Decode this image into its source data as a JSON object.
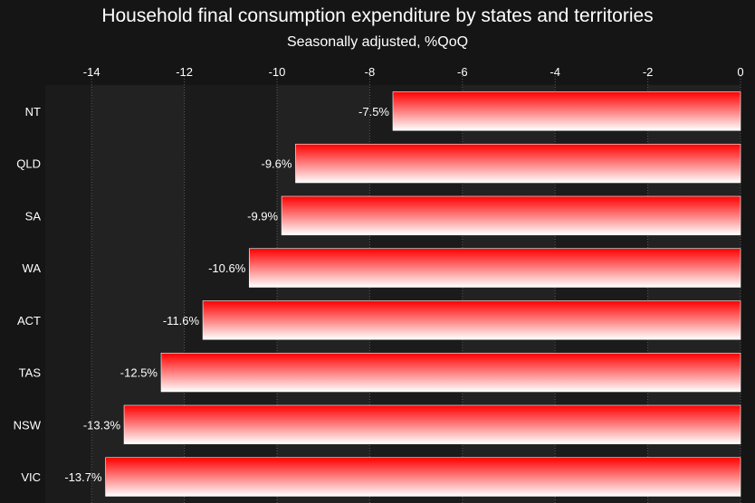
{
  "colors": {
    "background": "#151515",
    "plot_band_dark": "#1b1b1b",
    "plot_band_light": "#222222",
    "gridline": "#5a5a5a",
    "text": "#ffffff",
    "bar_top": "#ff0000",
    "bar_bottom": "#ffffff"
  },
  "chart_data": {
    "type": "bar",
    "orientation": "horizontal",
    "title": "Household final consumption expenditure by states and territories",
    "subtitle": "Seasonally adjusted, %QoQ",
    "xlabel": "",
    "ylabel": "",
    "xlim": [
      -15,
      0
    ],
    "x_ticks": [
      -14,
      -12,
      -10,
      -8,
      -6,
      -4,
      -2,
      0
    ],
    "x_axis_position": "top",
    "grid": "vertical dotted",
    "legend": "none",
    "categories": [
      "NT",
      "QLD",
      "SA",
      "WA",
      "ACT",
      "TAS",
      "NSW",
      "VIC"
    ],
    "values": [
      -7.5,
      -9.6,
      -9.9,
      -10.6,
      -11.6,
      -12.5,
      -13.3,
      -13.7
    ],
    "data_labels": [
      "-7.5%",
      "-9.6%",
      "-9.9%",
      "-10.6%",
      "-11.6%",
      "-12.5%",
      "-13.3%",
      "-13.7%"
    ]
  }
}
